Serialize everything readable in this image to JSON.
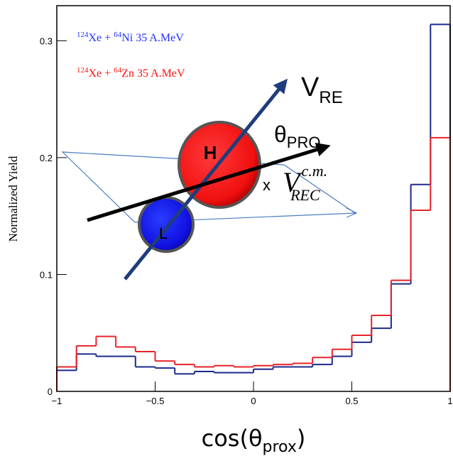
{
  "chart_data": {
    "type": "histogram",
    "bins": [
      -1,
      -0.9,
      -0.8,
      -0.7,
      -0.6,
      -0.5,
      -0.4,
      -0.3,
      -0.2,
      -0.1,
      0,
      0.1,
      0.2,
      0.3,
      0.4,
      0.5,
      0.6,
      0.7,
      0.8,
      0.9,
      1
    ],
    "series": [
      {
        "name": "124Xe + 64Ni   35 A.MeV",
        "color": "#1c2a8c",
        "values": [
          0.018,
          0.032,
          0.03,
          0.03,
          0.021,
          0.02,
          0.015,
          0.017,
          0.016,
          0.016,
          0.019,
          0.021,
          0.021,
          0.023,
          0.03,
          0.042,
          0.054,
          0.092,
          0.177,
          0.314
        ]
      },
      {
        "name": "124Xe + 64Zn   35 A.MeV",
        "color": "#e8232a",
        "values": [
          0.021,
          0.039,
          0.047,
          0.038,
          0.034,
          0.026,
          0.023,
          0.021,
          0.022,
          0.021,
          0.022,
          0.023,
          0.024,
          0.029,
          0.036,
          0.048,
          0.065,
          0.095,
          0.155,
          0.217
        ]
      }
    ],
    "xlim": [
      -1,
      1
    ],
    "ylim": [
      0,
      0.33
    ],
    "xticks": [
      {
        "value": -1,
        "label": "−1"
      },
      {
        "value": -0.5,
        "label": "−0.5"
      },
      0,
      0.5,
      1
    ],
    "yticks": [
      0,
      0.1,
      0.2,
      0.3
    ],
    "y_label": "Normalized Yield",
    "x_label": {
      "text": "cos(θ",
      "sub": "prox",
      "tail": ")"
    },
    "annotations": {
      "v_re": {
        "main": "V",
        "sub": "RE"
      },
      "theta_pro": {
        "main": "θ",
        "sub": "PRO"
      },
      "x_mark": "x",
      "v_rec": {
        "main": "V",
        "sup": "c.m.",
        "sub": "REC"
      },
      "heavy": "H",
      "light": "L"
    }
  }
}
